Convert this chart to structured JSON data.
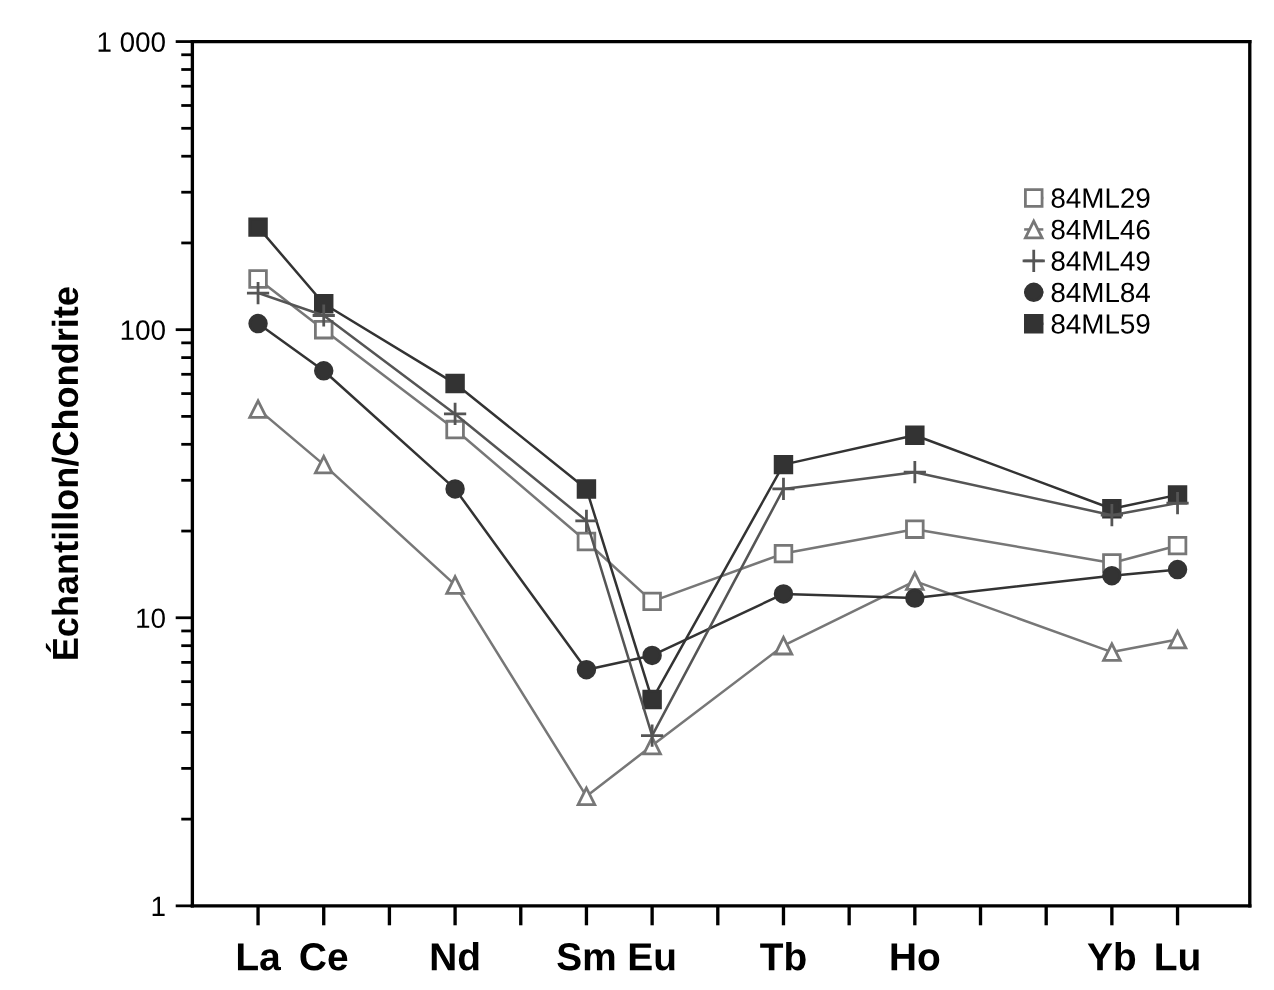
{
  "chart_data": {
    "type": "line",
    "ylabel": "Échantillon/Chondrite",
    "log": "y",
    "legend": "top right",
    "grid": false,
    "line_style": "solid",
    "categories": [
      "La",
      "Ce",
      null,
      "Nd",
      null,
      "Sm",
      "Eu",
      null,
      "Tb",
      null,
      "Ho",
      null,
      null,
      "Yb",
      "Lu"
    ],
    "ylim": [
      1,
      1000
    ],
    "yticks": [
      1,
      {
        "value": 2,
        "label": null
      },
      {
        "value": 3,
        "label": null
      },
      {
        "value": 4,
        "label": null
      },
      {
        "value": 5,
        "label": null
      },
      {
        "value": 6,
        "label": null
      },
      {
        "value": 7,
        "label": null
      },
      {
        "value": 8,
        "label": null
      },
      {
        "value": 9,
        "label": null
      },
      10,
      {
        "value": 20,
        "label": null
      },
      {
        "value": 30,
        "label": null
      },
      {
        "value": 40,
        "label": null
      },
      {
        "value": 50,
        "label": null
      },
      {
        "value": 60,
        "label": null
      },
      {
        "value": 70,
        "label": null
      },
      {
        "value": 80,
        "label": null
      },
      {
        "value": 90,
        "label": null
      },
      100,
      {
        "value": 200,
        "label": null
      },
      {
        "value": 300,
        "label": null
      },
      {
        "value": 400,
        "label": null
      },
      {
        "value": 500,
        "label": null
      },
      {
        "value": 600,
        "label": null
      },
      {
        "value": 700,
        "label": null
      },
      {
        "value": 800,
        "label": null
      },
      {
        "value": 900,
        "label": null
      },
      {
        "value": 1000,
        "label": "1 000"
      }
    ],
    "series": [
      {
        "name": "84ML29",
        "color": "#777777",
        "marker": "square",
        "values": [
          150,
          100,
          null,
          45,
          null,
          18.4,
          11.4,
          null,
          16.7,
          null,
          20.3,
          null,
          null,
          15.5,
          17.8
        ]
      },
      {
        "name": "84ML46",
        "color": "#777777",
        "marker": "triangle",
        "values": [
          53,
          34,
          null,
          13,
          null,
          2.4,
          3.6,
          null,
          8.0,
          null,
          13.4,
          null,
          null,
          7.6,
          8.4
        ]
      },
      {
        "name": "84ML49",
        "color": "#555555",
        "marker": "cross",
        "values": [
          134,
          112,
          null,
          51,
          null,
          21.7,
          3.9,
          null,
          28,
          null,
          32,
          null,
          null,
          22.7,
          25
        ]
      },
      {
        "name": "84ML84",
        "color": "#333333",
        "marker": "circle",
        "values": [
          105,
          72,
          null,
          28,
          null,
          6.6,
          7.4,
          null,
          12.1,
          null,
          11.7,
          null,
          null,
          14.0,
          14.7
        ]
      },
      {
        "name": "84ML59",
        "color": "#333333",
        "marker": "square",
        "values": [
          227,
          123,
          null,
          65,
          null,
          28,
          5.2,
          null,
          34,
          null,
          43,
          null,
          null,
          23.9,
          26.7
        ]
      }
    ]
  }
}
